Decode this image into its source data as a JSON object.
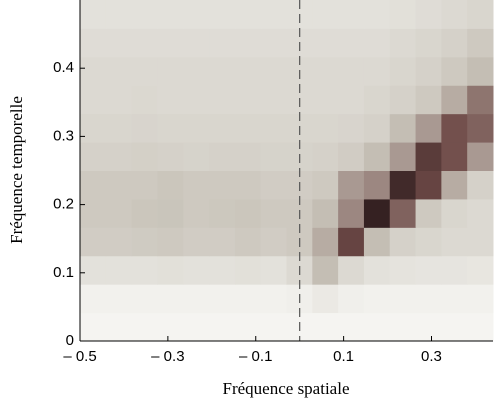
{
  "chart_data": {
    "type": "heatmap",
    "x_label": "Fréquence spatiale",
    "y_label": "Fréquence temporelle",
    "xlim": [
      -0.5,
      0.44
    ],
    "ylim": [
      0,
      0.5
    ],
    "xticks": [
      {
        "value": -0.5,
        "label": "– 0.5"
      },
      {
        "value": -0.3,
        "label": "– 0.3"
      },
      {
        "value": -0.1,
        "label": "– 0.1"
      },
      0.1,
      0.3
    ],
    "yticks": [
      0,
      0.1,
      0.2,
      0.3,
      0.4
    ],
    "colors": [
      "#f9f9f6",
      "#c9c4ba",
      "#6e4a47",
      "#1c1012"
    ],
    "annotation_color": "#555555",
    "values": [
      [
        0.03,
        0.03,
        0.03,
        0.03,
        0.03,
        0.03,
        0.03,
        0.03,
        0.03,
        0.03,
        0.03,
        0.03,
        0.03,
        0.03,
        0.03,
        0.03
      ],
      [
        0.05,
        0.05,
        0.05,
        0.05,
        0.05,
        0.05,
        0.05,
        0.05,
        0.06,
        0.1,
        0.06,
        0.05,
        0.05,
        0.05,
        0.05,
        0.05
      ],
      [
        0.15,
        0.15,
        0.15,
        0.16,
        0.15,
        0.15,
        0.16,
        0.15,
        0.2,
        0.35,
        0.2,
        0.15,
        0.14,
        0.13,
        0.13,
        0.12
      ],
      [
        0.28,
        0.28,
        0.29,
        0.3,
        0.28,
        0.28,
        0.3,
        0.28,
        0.3,
        0.4,
        0.7,
        0.35,
        0.25,
        0.22,
        0.2,
        0.2
      ],
      [
        0.3,
        0.3,
        0.32,
        0.33,
        0.3,
        0.31,
        0.32,
        0.3,
        0.3,
        0.35,
        0.5,
        0.9,
        0.6,
        0.3,
        0.22,
        0.2
      ],
      [
        0.3,
        0.3,
        0.3,
        0.32,
        0.3,
        0.3,
        0.3,
        0.28,
        0.28,
        0.3,
        0.45,
        0.5,
        0.85,
        0.7,
        0.4,
        0.25
      ],
      [
        0.25,
        0.25,
        0.26,
        0.25,
        0.24,
        0.25,
        0.25,
        0.24,
        0.24,
        0.25,
        0.28,
        0.35,
        0.45,
        0.75,
        0.65,
        0.45
      ],
      [
        0.22,
        0.22,
        0.23,
        0.22,
        0.22,
        0.22,
        0.22,
        0.22,
        0.22,
        0.22,
        0.23,
        0.25,
        0.35,
        0.45,
        0.65,
        0.6
      ],
      [
        0.2,
        0.2,
        0.21,
        0.2,
        0.2,
        0.2,
        0.2,
        0.2,
        0.2,
        0.2,
        0.2,
        0.22,
        0.25,
        0.3,
        0.4,
        0.55
      ],
      [
        0.2,
        0.2,
        0.2,
        0.2,
        0.2,
        0.2,
        0.2,
        0.2,
        0.2,
        0.2,
        0.2,
        0.2,
        0.22,
        0.25,
        0.3,
        0.35
      ],
      [
        0.18,
        0.18,
        0.18,
        0.18,
        0.18,
        0.18,
        0.18,
        0.18,
        0.18,
        0.18,
        0.18,
        0.18,
        0.2,
        0.22,
        0.25,
        0.3
      ],
      [
        0.15,
        0.15,
        0.15,
        0.15,
        0.15,
        0.15,
        0.15,
        0.15,
        0.15,
        0.15,
        0.15,
        0.15,
        0.16,
        0.18,
        0.2,
        0.22
      ]
    ]
  }
}
